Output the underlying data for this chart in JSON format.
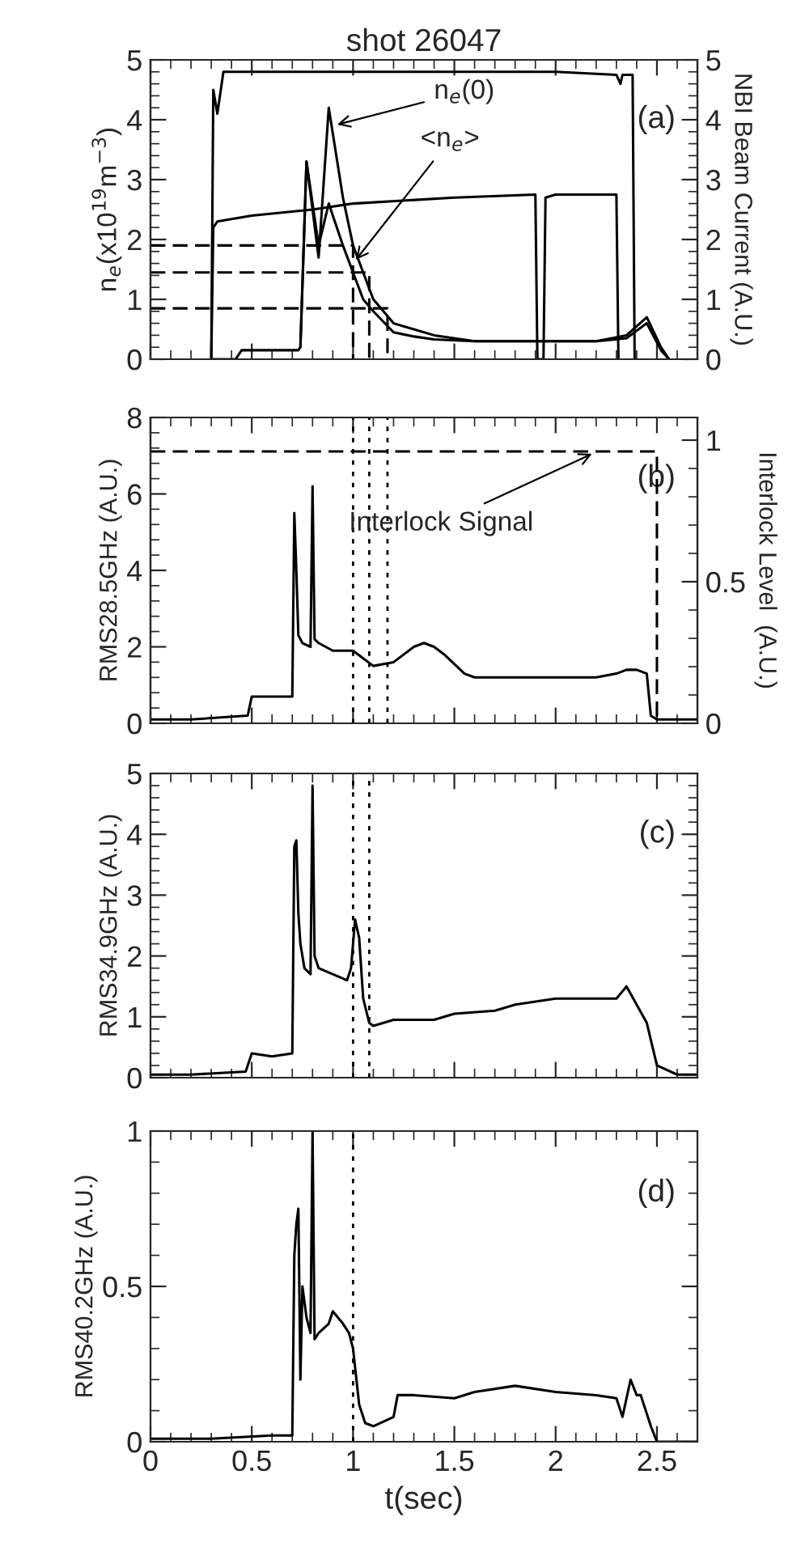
{
  "chart_data": [
    {
      "type": "line",
      "title": "shot 26047",
      "ylabel": "n$_{e}$(x10$^{19}$m$^{−3}$)",
      "y2label": "NBI Beam Current (A.U.)",
      "xlim": [
        0,
        2.7
      ],
      "xticks": [
        0,
        0.5,
        1,
        1.5,
        2,
        2.5
      ],
      "ylim": [
        0,
        5
      ],
      "yticks": [
        0,
        1,
        2,
        3,
        4,
        5
      ],
      "y2lim": [
        0,
        5
      ],
      "y2ticks": [
        0,
        1,
        2,
        3,
        4,
        5
      ],
      "tick_labels": "y",
      "series": [
        {
          "color": "#000000",
          "axis": "y2",
          "x": [
            0.3,
            0.31,
            0.33,
            0.36,
            0.5,
            1.0,
            1.5,
            2.0,
            2.3,
            2.32,
            2.33,
            2.34,
            2.38,
            2.39
          ],
          "values": [
            0,
            4.5,
            4.1,
            4.8,
            4.8,
            4.8,
            4.8,
            4.8,
            4.75,
            4.6,
            4.75,
            4.75,
            4.75,
            0
          ]
        },
        {
          "color": "#000000",
          "axis": "y2",
          "x": [
            0.3,
            0.31,
            0.33,
            0.5,
            0.8,
            1.0,
            1.5,
            1.9,
            1.91,
            1.94,
            1.95,
            2.0,
            2.3,
            2.31
          ],
          "values": [
            0,
            2.2,
            2.3,
            2.4,
            2.5,
            2.6,
            2.7,
            2.75,
            0,
            0,
            2.7,
            2.75,
            2.75,
            0
          ]
        },
        {
          "color": "#000000",
          "x": [
            0.3,
            0.42,
            0.45,
            0.73,
            0.74,
            0.77,
            0.83,
            0.88,
            0.95,
            1.0,
            1.05,
            1.1,
            1.2,
            1.3,
            1.4,
            1.6,
            1.9,
            2.2,
            2.35,
            2.45,
            2.52,
            2.56
          ],
          "values": [
            0,
            0,
            0.15,
            0.15,
            0.2,
            3.3,
            1.7,
            4.2,
            2.7,
            1.9,
            1.45,
            1.0,
            0.6,
            0.5,
            0.4,
            0.3,
            0.3,
            0.3,
            0.4,
            0.7,
            0.2,
            0
          ]
        },
        {
          "color": "#000000",
          "x": [
            0.74,
            0.77,
            0.83,
            0.88,
            0.95,
            1.0,
            1.05,
            1.1,
            1.2,
            1.3,
            1.4,
            1.6,
            2.2,
            2.35,
            2.45,
            2.52,
            2.56
          ],
          "values": [
            0.2,
            3.3,
            1.9,
            2.6,
            1.9,
            1.45,
            1.0,
            0.8,
            0.45,
            0.38,
            0.33,
            0.3,
            0.3,
            0.35,
            0.6,
            0.15,
            0
          ]
        },
        {
          "color": "#000000",
          "line_style": "dashed",
          "x": [
            0,
            1.0,
            1.0
          ],
          "values": [
            1.9,
            1.9,
            0
          ]
        },
        {
          "color": "#000000",
          "line_style": "dashed",
          "x": [
            0,
            1.08,
            1.08
          ],
          "values": [
            1.45,
            1.45,
            0
          ]
        },
        {
          "color": "#000000",
          "line_style": "dashed",
          "x": [
            0,
            1.17,
            1.17
          ],
          "values": [
            0.85,
            0.85,
            0
          ]
        }
      ],
      "annotations": [
        "(a)",
        {
          "text": "n$_{e}$(0)",
          "x": 0.9,
          "y": 3.9
        },
        {
          "text": "<n$_{e}$>",
          "x": 1.0,
          "y": 1.6
        }
      ]
    },
    {
      "type": "line",
      "ylabel": "RMS28.5GHz (A.U.)",
      "y2label": "Interlock Level  (A.U.)",
      "xlim": [
        0,
        2.7
      ],
      "xticks": [
        0,
        0.5,
        1,
        1.5,
        2,
        2.5
      ],
      "ylim": [
        0,
        8
      ],
      "yticks": [
        0,
        2,
        4,
        6,
        8
      ],
      "y2lim": [
        0,
        1.08
      ],
      "y2ticks": [
        0,
        0.5,
        1
      ],
      "tick_labels": "y",
      "series": [
        {
          "color": "#000000",
          "x": [
            0,
            0.2,
            0.48,
            0.5,
            0.7,
            0.71,
            0.72,
            0.73,
            0.75,
            0.79,
            0.8,
            0.81,
            0.83,
            0.9,
            1.0,
            1.05,
            1.1,
            1.2,
            1.3,
            1.35,
            1.4,
            1.45,
            1.55,
            1.6,
            1.8,
            2.0,
            2.2,
            2.3,
            2.35,
            2.4,
            2.45,
            2.47,
            2.5,
            2.7
          ],
          "values": [
            0.1,
            0.1,
            0.2,
            0.7,
            0.7,
            5.5,
            4.0,
            2.3,
            2.1,
            2.0,
            6.2,
            2.2,
            2.1,
            1.9,
            1.9,
            1.7,
            1.5,
            1.6,
            2.0,
            2.1,
            2.0,
            1.8,
            1.3,
            1.2,
            1.2,
            1.2,
            1.2,
            1.3,
            1.4,
            1.4,
            1.3,
            0.2,
            0.1,
            0.1
          ]
        },
        {
          "color": "#000000",
          "axis": "y2",
          "line_style": "dashed",
          "x": [
            0,
            2.5,
            2.5
          ],
          "values": [
            0.96,
            0.96,
            0
          ]
        }
      ],
      "ref_lines": [
        {
          "axis": "x",
          "value": 1.0,
          "line_style": "dotted"
        },
        {
          "axis": "x",
          "value": 1.08,
          "line_style": "dotted"
        },
        {
          "axis": "x",
          "value": 1.17,
          "line_style": "dotted"
        }
      ],
      "annotations": [
        "(b)",
        {
          "text": "Interlock Signal",
          "x": 2.2,
          "y": 7.1
        }
      ]
    },
    {
      "type": "line",
      "ylabel": "RMS34.9GHz (A.U.)",
      "xlim": [
        0,
        2.7
      ],
      "xticks": [
        0,
        0.5,
        1,
        1.5,
        2,
        2.5
      ],
      "ylim": [
        0,
        5
      ],
      "yticks": [
        0,
        1,
        2,
        3,
        4,
        5
      ],
      "tick_labels": "y",
      "series": [
        {
          "color": "#000000",
          "x": [
            0,
            0.2,
            0.47,
            0.5,
            0.6,
            0.7,
            0.71,
            0.72,
            0.73,
            0.74,
            0.76,
            0.79,
            0.8,
            0.81,
            0.83,
            0.9,
            0.97,
            0.99,
            1.01,
            1.03,
            1.05,
            1.08,
            1.1,
            1.2,
            1.4,
            1.5,
            1.7,
            1.8,
            2.0,
            2.2,
            2.3,
            2.35,
            2.4,
            2.45,
            2.5,
            2.6,
            2.7
          ],
          "values": [
            0.05,
            0.05,
            0.1,
            0.4,
            0.35,
            0.4,
            3.8,
            3.9,
            2.7,
            2.2,
            1.8,
            1.7,
            4.8,
            2.0,
            1.8,
            1.7,
            1.6,
            1.8,
            2.6,
            2.3,
            1.3,
            0.9,
            0.85,
            0.95,
            0.95,
            1.05,
            1.1,
            1.2,
            1.3,
            1.3,
            1.3,
            1.5,
            1.2,
            0.9,
            0.2,
            0.05,
            0.05
          ]
        }
      ],
      "ref_lines": [
        {
          "axis": "x",
          "value": 1.0,
          "line_style": "dotted"
        },
        {
          "axis": "x",
          "value": 1.08,
          "line_style": "dotted"
        }
      ],
      "annotations": [
        "(c)"
      ]
    },
    {
      "type": "line",
      "ylabel": "RMS40.2GHz (A.U.)",
      "xlabel": "t(sec)",
      "xlim": [
        0,
        2.7
      ],
      "xticks": [
        0,
        0.5,
        1,
        1.5,
        2,
        2.5
      ],
      "ylim": [
        0,
        1
      ],
      "yticks": [
        0,
        0.5,
        1
      ],
      "series": [
        {
          "color": "#000000",
          "x": [
            0,
            0.3,
            0.6,
            0.7,
            0.71,
            0.72,
            0.73,
            0.74,
            0.75,
            0.77,
            0.79,
            0.8,
            0.81,
            0.83,
            0.88,
            0.9,
            0.95,
            0.98,
            1.0,
            1.03,
            1.06,
            1.1,
            1.2,
            1.22,
            1.3,
            1.5,
            1.6,
            1.8,
            2.0,
            2.2,
            2.3,
            2.33,
            2.37,
            2.4,
            2.42,
            2.47,
            2.5,
            2.7
          ],
          "values": [
            0.01,
            0.01,
            0.02,
            0.02,
            0.6,
            0.7,
            0.75,
            0.2,
            0.5,
            0.4,
            0.35,
            1.0,
            0.33,
            0.35,
            0.38,
            0.42,
            0.38,
            0.35,
            0.3,
            0.12,
            0.06,
            0.05,
            0.08,
            0.15,
            0.15,
            0.14,
            0.16,
            0.18,
            0.16,
            0.15,
            0.14,
            0.08,
            0.2,
            0.15,
            0.15,
            0.05,
            0.0,
            0.0
          ]
        }
      ],
      "ref_lines": [
        {
          "axis": "x",
          "value": 1.0,
          "line_style": "dotted"
        }
      ],
      "annotations": [
        "(d)"
      ]
    }
  ]
}
